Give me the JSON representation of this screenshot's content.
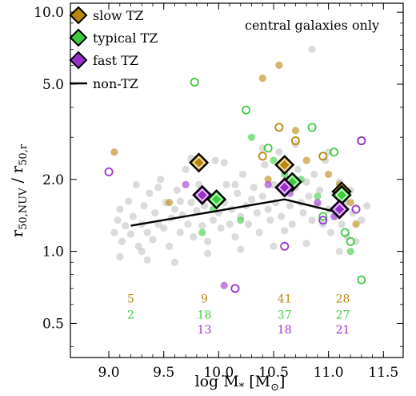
{
  "chart_data": {
    "type": "scatter",
    "xlabel": "log M",
    "xlabel_sub": "*",
    "xlabel_unit_open": " [M",
    "xlabel_unit_sub": "⊙",
    "xlabel_unit_close": "]",
    "ylabel": "r",
    "ylabel_sub1": "50,NUV",
    "ylabel_mid": " / r",
    "ylabel_sub2": "50,r",
    "xlim": [
      8.65,
      11.68
    ],
    "ylim": [
      0.36,
      10.9
    ],
    "log_y": true,
    "x_ticks": [
      {
        "value": 9.0,
        "label": "9.0"
      },
      {
        "value": 9.5,
        "label": "9.5"
      },
      {
        "value": 10.0,
        "label": "10.0"
      },
      {
        "value": 10.5,
        "label": "10.5"
      },
      {
        "value": 11.0,
        "label": "11.0"
      },
      {
        "value": 11.5,
        "label": "11.5"
      }
    ],
    "y_ticks": [
      {
        "value": 0.5,
        "label": "0.5"
      },
      {
        "value": 1.0,
        "label": "1.0"
      },
      {
        "value": 2.0,
        "label": "2.0"
      },
      {
        "value": 5.0,
        "label": "5.0"
      },
      {
        "value": 10.0,
        "label": "10.0"
      }
    ],
    "annotation": "central galaxies only",
    "legend_position": "top-left",
    "colors": {
      "slow": "#B8860B",
      "typical": "#3DCC3D",
      "fast": "#9932CC",
      "non_tz": "#000000",
      "gray": "#B0B0B0"
    },
    "legend": [
      {
        "key": "slow",
        "label": "slow TZ",
        "marker": "diamond"
      },
      {
        "key": "typical",
        "label": "typical TZ",
        "marker": "diamond"
      },
      {
        "key": "fast",
        "label": "fast TZ",
        "marker": "diamond"
      },
      {
        "key": "non_tz",
        "label": "non-TZ",
        "marker": "line"
      }
    ],
    "non_tz_line": {
      "x": [
        9.2,
        10.6,
        11.1
      ],
      "y": [
        1.28,
        1.65,
        1.45
      ]
    },
    "medians": [
      {
        "series": "slow",
        "x": [
          9.82,
          10.6,
          11.12
        ],
        "y": [
          2.35,
          2.3,
          1.78
        ]
      },
      {
        "series": "typical",
        "x": [
          9.98,
          10.67,
          11.12
        ],
        "y": [
          1.65,
          1.95,
          1.72
        ]
      },
      {
        "series": "fast",
        "x": [
          9.85,
          10.6,
          11.1
        ],
        "y": [
          1.72,
          1.85,
          1.5
        ]
      }
    ],
    "counts": [
      {
        "series": "slow",
        "x": [
          9.2,
          9.87,
          10.6,
          11.13
        ],
        "y": [
          0.635,
          0.635,
          0.635,
          0.635
        ],
        "labels": [
          "5",
          "9",
          "41",
          "28"
        ]
      },
      {
        "series": "typical",
        "x": [
          9.2,
          9.87,
          10.6,
          11.13
        ],
        "y": [
          0.545,
          0.545,
          0.545,
          0.545
        ],
        "labels": [
          "2",
          "18",
          "37",
          "27"
        ]
      },
      {
        "series": "fast",
        "x": [
          9.87,
          10.6,
          11.13
        ],
        "y": [
          0.472,
          0.472,
          0.472
        ],
        "labels": [
          "13",
          "18",
          "21"
        ]
      }
    ],
    "scatter_points": {
      "non_tz": [
        [
          9.05,
          1.2
        ],
        [
          9.08,
          1.35
        ],
        [
          9.1,
          1.5
        ],
        [
          9.12,
          1.1
        ],
        [
          9.15,
          1.28
        ],
        [
          9.18,
          1.62
        ],
        [
          9.2,
          1.18
        ],
        [
          9.22,
          1.4
        ],
        [
          9.25,
          1.9
        ],
        [
          9.27,
          1.05
        ],
        [
          9.3,
          1.3
        ],
        [
          9.32,
          1.55
        ],
        [
          9.35,
          1.2
        ],
        [
          9.37,
          1.75
        ],
        [
          9.4,
          1.12
        ],
        [
          9.42,
          1.45
        ],
        [
          9.45,
          1.3
        ],
        [
          9.47,
          2.0
        ],
        [
          9.5,
          1.25
        ],
        [
          9.52,
          1.6
        ],
        [
          9.55,
          1.05
        ],
        [
          9.57,
          1.38
        ],
        [
          9.6,
          1.5
        ],
        [
          9.62,
          1.8
        ],
        [
          9.65,
          1.2
        ],
        [
          9.67,
          1.42
        ],
        [
          9.7,
          2.2
        ],
        [
          9.72,
          1.3
        ],
        [
          9.75,
          1.6
        ],
        [
          9.77,
          1.15
        ],
        [
          9.8,
          1.48
        ],
        [
          9.82,
          1.9
        ],
        [
          9.85,
          1.28
        ],
        [
          9.87,
          1.55
        ],
        [
          9.9,
          1.1
        ],
        [
          9.92,
          1.7
        ],
        [
          9.95,
          1.35
        ],
        [
          9.97,
          2.4
        ],
        [
          10.0,
          1.45
        ],
        [
          10.02,
          1.25
        ],
        [
          10.05,
          1.6
        ],
        [
          10.07,
          1.9
        ],
        [
          10.1,
          1.3
        ],
        [
          10.12,
          1.5
        ],
        [
          10.15,
          1.15
        ],
        [
          10.17,
          1.75
        ],
        [
          10.2,
          1.4
        ],
        [
          10.22,
          2.1
        ],
        [
          10.25,
          1.55
        ],
        [
          10.27,
          1.3
        ],
        [
          10.3,
          1.65
        ],
        [
          10.32,
          1.85
        ],
        [
          10.35,
          1.45
        ],
        [
          10.37,
          1.2
        ],
        [
          10.4,
          1.7
        ],
        [
          10.42,
          2.3
        ],
        [
          10.45,
          1.5
        ],
        [
          10.47,
          1.35
        ],
        [
          10.5,
          1.9
        ],
        [
          10.52,
          1.6
        ],
        [
          10.55,
          2.6
        ],
        [
          10.57,
          1.4
        ],
        [
          10.6,
          1.75
        ],
        [
          10.62,
          2.0
        ],
        [
          10.65,
          1.55
        ],
        [
          10.67,
          1.3
        ],
        [
          10.7,
          1.85
        ],
        [
          10.72,
          2.2
        ],
        [
          10.75,
          1.6
        ],
        [
          10.77,
          1.45
        ],
        [
          10.8,
          1.95
        ],
        [
          10.82,
          1.7
        ],
        [
          10.85,
          1.35
        ],
        [
          10.87,
          2.1
        ],
        [
          10.9,
          1.55
        ],
        [
          10.92,
          1.8
        ],
        [
          10.95,
          1.3
        ],
        [
          10.97,
          2.4
        ],
        [
          11.0,
          1.5
        ],
        [
          11.02,
          1.2
        ],
        [
          11.05,
          1.75
        ],
        [
          11.07,
          1.4
        ],
        [
          11.1,
          1.95
        ],
        [
          11.12,
          1.3
        ],
        [
          11.15,
          1.6
        ],
        [
          11.17,
          1.15
        ],
        [
          11.2,
          1.8
        ],
        [
          11.22,
          1.45
        ],
        [
          11.25,
          1.1
        ],
        [
          11.3,
          1.35
        ],
        [
          9.1,
          0.95
        ],
        [
          9.3,
          1.0
        ],
        [
          9.6,
          0.9
        ],
        [
          9.9,
          0.98
        ],
        [
          10.2,
          1.02
        ],
        [
          10.5,
          1.05
        ],
        [
          10.8,
          1.08
        ],
        [
          11.1,
          1.0
        ],
        [
          9.45,
          1.85
        ],
        [
          9.75,
          2.45
        ],
        [
          10.05,
          2.35
        ],
        [
          10.4,
          2.7
        ],
        [
          10.7,
          2.8
        ],
        [
          11.0,
          2.6
        ],
        [
          10.85,
          7.0
        ],
        [
          11.35,
          1.55
        ],
        [
          9.35,
          0.92
        ],
        [
          9.65,
          1.62
        ],
        [
          10.15,
          1.9
        ],
        [
          10.6,
          1.22
        ]
      ],
      "slow_open": [
        [
          10.55,
          3.3
        ],
        [
          10.7,
          2.9
        ],
        [
          10.95,
          2.5
        ],
        [
          11.3,
          2.9
        ],
        [
          10.4,
          2.5
        ]
      ],
      "slow_filled": [
        [
          9.05,
          2.6
        ],
        [
          10.4,
          5.3
        ],
        [
          10.55,
          6.0
        ],
        [
          10.7,
          3.2
        ],
        [
          10.8,
          2.4
        ],
        [
          11.0,
          2.1
        ],
        [
          11.1,
          1.9
        ],
        [
          11.2,
          1.6
        ],
        [
          9.55,
          1.6
        ],
        [
          10.45,
          2.0
        ],
        [
          11.25,
          1.3
        ]
      ],
      "typical_open": [
        [
          9.78,
          5.1
        ],
        [
          10.25,
          3.9
        ],
        [
          10.45,
          2.7
        ],
        [
          10.85,
          3.3
        ],
        [
          11.05,
          2.6
        ],
        [
          11.3,
          0.76
        ],
        [
          11.2,
          1.1
        ],
        [
          10.95,
          1.4
        ],
        [
          11.15,
          1.2
        ]
      ],
      "typical_filled": [
        [
          10.3,
          3.0
        ],
        [
          10.5,
          2.4
        ],
        [
          10.6,
          2.1
        ],
        [
          10.75,
          2.0
        ],
        [
          10.9,
          1.7
        ],
        [
          11.1,
          1.5
        ],
        [
          9.95,
          1.5
        ],
        [
          10.2,
          1.35
        ],
        [
          9.85,
          1.2
        ],
        [
          11.2,
          1.0
        ]
      ],
      "fast_open": [
        [
          9.0,
          2.15
        ],
        [
          10.15,
          0.7
        ],
        [
          10.6,
          1.05
        ],
        [
          10.95,
          1.35
        ],
        [
          11.3,
          2.9
        ],
        [
          11.25,
          1.5
        ]
      ],
      "fast_filled": [
        [
          9.7,
          1.9
        ],
        [
          10.45,
          1.9
        ],
        [
          10.65,
          1.75
        ],
        [
          10.9,
          1.6
        ],
        [
          11.05,
          1.4
        ],
        [
          10.05,
          0.72
        ]
      ]
    }
  }
}
